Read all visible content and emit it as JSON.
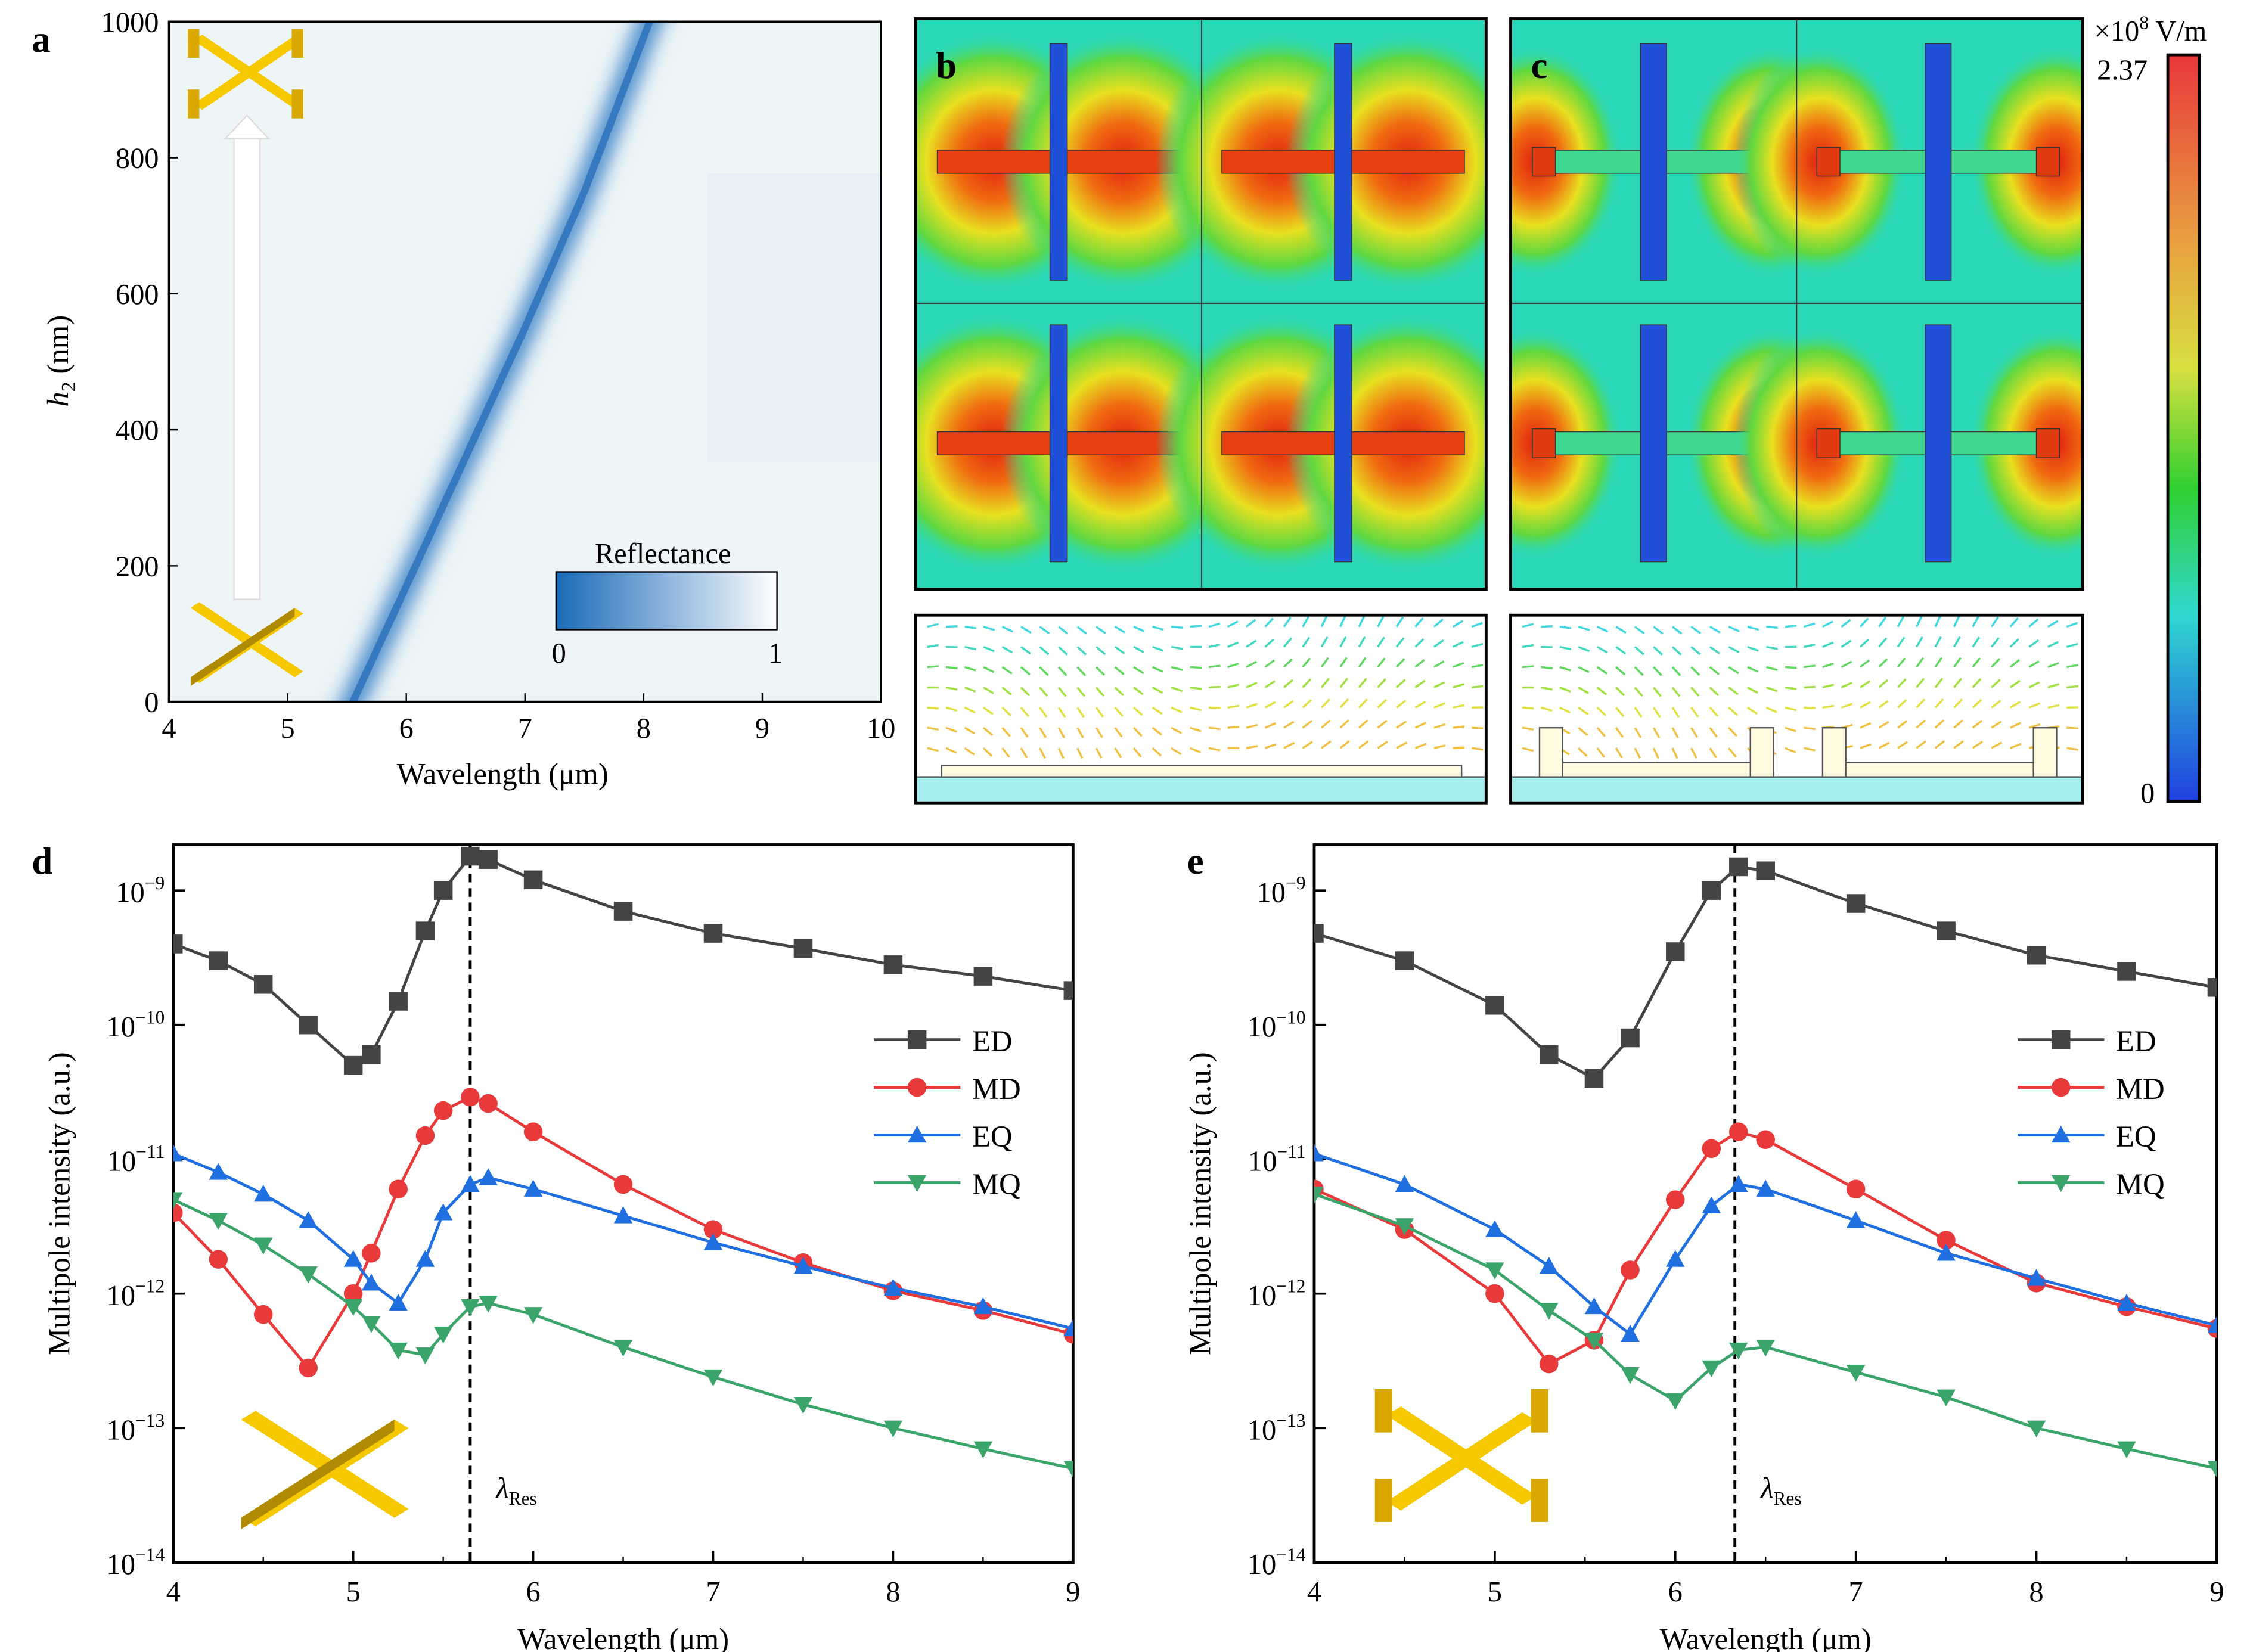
{
  "panels": {
    "a": "a",
    "b": "b",
    "c": "c",
    "d": "d",
    "e": "e"
  },
  "colors": {
    "ED": "#444444",
    "MD": "#e8393b",
    "EQ": "#1f6fe0",
    "MQ": "#3aa46a",
    "gold": "#f2c200",
    "band": "#2a78c4"
  },
  "chart_data": [
    {
      "panel": "a",
      "type": "heatmap",
      "xlabel": "Wavelength (μm)",
      "ylabel_main": "h",
      "ylabel_sub": "2",
      "ylabel_unit": " (nm)",
      "xlim": [
        4,
        10
      ],
      "ylim": [
        0,
        1000
      ],
      "xticks": [
        4,
        5,
        6,
        7,
        8,
        9,
        10
      ],
      "yticks": [
        0,
        200,
        400,
        600,
        800,
        1000
      ],
      "colorbar": {
        "title": "Reflectance",
        "min_label": "0",
        "max_label": "1"
      },
      "reflectance_dip": [
        [
          5.55,
          0
        ],
        [
          6.0,
          170
        ],
        [
          6.5,
          360
        ],
        [
          7.0,
          550
        ],
        [
          7.5,
          750
        ],
        [
          8.05,
          1000
        ]
      ]
    },
    {
      "panel": "b-c",
      "type": "heatmap",
      "colorbar": {
        "unit_prefix": "×10",
        "unit_exp": "8",
        "unit": " V/m",
        "max_label": "2.37",
        "min_label": "0"
      }
    },
    {
      "panel": "d",
      "type": "scatter",
      "yscale": "log",
      "xlabel": "Wavelength (μm)",
      "ylabel": "Multipole intensity (a.u.)",
      "xlim": [
        4,
        9
      ],
      "ylim_exp": [
        -14,
        -8.66
      ],
      "xticks": [
        4,
        5,
        6,
        7,
        8,
        9
      ],
      "yticks_exp": [
        -14,
        -13,
        -12,
        -11,
        -10,
        -9
      ],
      "resonance": {
        "x": 5.65,
        "label": "λ",
        "label_sub": "Res"
      },
      "legend_position": "right",
      "x": [
        4,
        4.25,
        4.5,
        4.75,
        5,
        5.1,
        5.25,
        5.4,
        5.5,
        5.65,
        5.75,
        6,
        6.5,
        7,
        7.5,
        8,
        8.5,
        9
      ],
      "series": [
        {
          "name": "ED",
          "marker": "square",
          "values": [
            4e-10,
            3e-10,
            2e-10,
            1e-10,
            5e-11,
            6e-11,
            1.5e-10,
            5e-10,
            1e-09,
            1.8e-09,
            1.7e-09,
            1.2e-09,
            7e-10,
            4.8e-10,
            3.7e-10,
            2.8e-10,
            2.3e-10,
            1.8e-10
          ]
        },
        {
          "name": "MD",
          "marker": "circle",
          "values": [
            4e-12,
            1.8e-12,
            7e-13,
            2.8e-13,
            1e-12,
            2e-12,
            6e-12,
            1.5e-11,
            2.3e-11,
            2.9e-11,
            2.6e-11,
            1.6e-11,
            6.5e-12,
            3e-12,
            1.7e-12,
            1.05e-12,
            7.5e-13,
            5e-13
          ]
        },
        {
          "name": "EQ",
          "marker": "triangle-up",
          "values": [
            1.1e-11,
            8e-12,
            5.5e-12,
            3.5e-12,
            1.8e-12,
            1.2e-12,
            8.5e-13,
            1.8e-12,
            4e-12,
            6.5e-12,
            7.3e-12,
            6e-12,
            3.8e-12,
            2.4e-12,
            1.6e-12,
            1.1e-12,
            8e-13,
            5.5e-13
          ]
        },
        {
          "name": "MQ",
          "marker": "triangle-down",
          "values": [
            5e-12,
            3.5e-12,
            2.3e-12,
            1.4e-12,
            8e-13,
            6e-13,
            3.8e-13,
            3.5e-13,
            5e-13,
            8e-13,
            8.5e-13,
            7e-13,
            4e-13,
            2.4e-13,
            1.5e-13,
            1e-13,
            7e-14,
            5e-14
          ]
        }
      ]
    },
    {
      "panel": "e",
      "type": "scatter",
      "yscale": "log",
      "xlabel": "Wavelength (μm)",
      "ylabel": "Multipole intensity (a.u.)",
      "xlim": [
        4,
        9
      ],
      "ylim_exp": [
        -14,
        -8.66
      ],
      "xticks": [
        4,
        5,
        6,
        7,
        8,
        9
      ],
      "yticks_exp": [
        -14,
        -13,
        -12,
        -11,
        -10,
        -9
      ],
      "resonance": {
        "x": 6.33,
        "label": "λ",
        "label_sub": "Res"
      },
      "legend_position": "right",
      "x": [
        4,
        4.5,
        5,
        5.3,
        5.55,
        5.75,
        6,
        6.2,
        6.35,
        6.5,
        7,
        7.5,
        8,
        8.5,
        9
      ],
      "series": [
        {
          "name": "ED",
          "marker": "square",
          "values": [
            4.8e-10,
            3e-10,
            1.4e-10,
            6e-11,
            4e-11,
            8e-11,
            3.5e-10,
            1e-09,
            1.5e-09,
            1.4e-09,
            8e-10,
            5e-10,
            3.3e-10,
            2.5e-10,
            1.9e-10
          ]
        },
        {
          "name": "MD",
          "marker": "circle",
          "values": [
            6e-12,
            3e-12,
            1e-12,
            3e-13,
            4.5e-13,
            1.5e-12,
            5e-12,
            1.2e-11,
            1.6e-11,
            1.4e-11,
            6e-12,
            2.5e-12,
            1.2e-12,
            8e-13,
            5.5e-13
          ]
        },
        {
          "name": "EQ",
          "marker": "triangle-up",
          "values": [
            1.1e-11,
            6.5e-12,
            3e-12,
            1.6e-12,
            8e-13,
            5e-13,
            1.8e-12,
            4.5e-12,
            6.5e-12,
            6e-12,
            3.5e-12,
            2e-12,
            1.3e-12,
            8.5e-13,
            5.8e-13
          ]
        },
        {
          "name": "MQ",
          "marker": "triangle-down",
          "values": [
            5.5e-12,
            3.2e-12,
            1.5e-12,
            7.5e-13,
            4.5e-13,
            2.5e-13,
            1.6e-13,
            2.8e-13,
            3.8e-13,
            4e-13,
            2.6e-13,
            1.7e-13,
            1e-13,
            7e-14,
            5e-14
          ]
        }
      ]
    }
  ]
}
